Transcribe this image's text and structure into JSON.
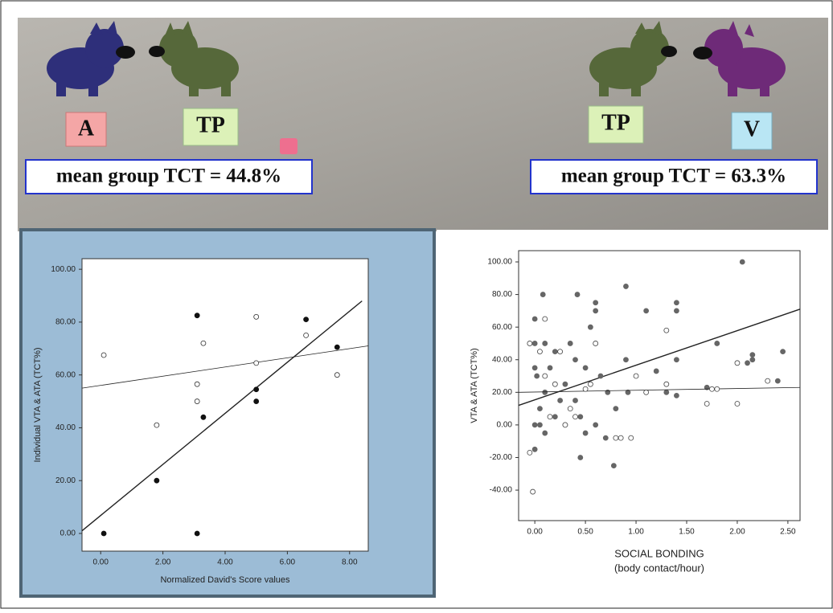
{
  "labels": {
    "left": [
      "A",
      "TP"
    ],
    "right": [
      "TP",
      "V"
    ]
  },
  "captions": [
    "mean group TCT = 44.8%",
    "mean group TCT = 63.3%"
  ],
  "chart_data": [
    {
      "type": "scatter",
      "xlabel": "Normalized David's Score values",
      "ylabel": "Individual VTA & ATA (TCT%)",
      "xlim": [
        -0.6,
        8.6
      ],
      "ylim": [
        -6.7,
        104
      ],
      "xticks": [
        {
          "value": 0,
          "label": "0.00"
        },
        {
          "value": 2,
          "label": "2.00"
        },
        {
          "value": 4,
          "label": "4.00"
        },
        {
          "value": 6,
          "label": "6.00"
        },
        {
          "value": 8,
          "label": "8.00"
        }
      ],
      "yticks": [
        {
          "value": 0,
          "label": "0.00"
        },
        {
          "value": 20,
          "label": "20.00"
        },
        {
          "value": 40,
          "label": "40.00"
        },
        {
          "value": 60,
          "label": "60.00"
        },
        {
          "value": 80,
          "label": "80.00"
        },
        {
          "value": 100,
          "label": "100.00"
        }
      ],
      "series": [
        {
          "marker": "filled",
          "color": "#111111",
          "x": [
            0.1,
            1.8,
            3.1,
            3.1,
            3.3,
            5.0,
            5.0,
            6.6,
            7.6
          ],
          "values": [
            0,
            20,
            0,
            82.5,
            44,
            54.5,
            50,
            81,
            70.5
          ],
          "fit": {
            "x": [
              -0.6,
              8.4
            ],
            "y": [
              1,
              88
            ]
          }
        },
        {
          "marker": "open",
          "color": "#333333",
          "x": [
            0.1,
            1.8,
            3.1,
            3.1,
            3.3,
            5.0,
            5.0,
            6.6,
            7.6
          ],
          "values": [
            67.5,
            41,
            56.5,
            50,
            72,
            82,
            64.5,
            75,
            60
          ],
          "fit": {
            "x": [
              -0.6,
              8.6
            ],
            "y": [
              55,
              71
            ]
          }
        }
      ]
    },
    {
      "type": "scatter",
      "xlabel": [
        "SOCIAL BONDING",
        "(body contact/hour)"
      ],
      "ylabel": "VTA & ATA (TCT%)",
      "xlim": [
        -0.16,
        2.62
      ],
      "ylim": [
        -58.7,
        106.9
      ],
      "xticks": [
        {
          "value": 0,
          "label": "0.00"
        },
        {
          "value": 0.5,
          "label": "0.50"
        },
        {
          "value": 1,
          "label": "1.00"
        },
        {
          "value": 1.5,
          "label": "1.50"
        },
        {
          "value": 2,
          "label": "2.00"
        },
        {
          "value": 2.5,
          "label": "2.50"
        }
      ],
      "yticks": [
        {
          "value": -40,
          "label": "-40.00"
        },
        {
          "value": -20,
          "label": "-20.00"
        },
        {
          "value": 0,
          "label": "0.00"
        },
        {
          "value": 20,
          "label": "20.00"
        },
        {
          "value": 40,
          "label": "40.00"
        },
        {
          "value": 60,
          "label": "60.00"
        },
        {
          "value": 80,
          "label": "80.00"
        },
        {
          "value": 100,
          "label": "100.00"
        }
      ],
      "series": [
        {
          "marker": "filled",
          "color": "#666666",
          "x": [
            0.0,
            0.0,
            0.0,
            0.0,
            0.0,
            0.02,
            0.05,
            0.05,
            0.08,
            0.1,
            0.1,
            0.1,
            0.15,
            0.2,
            0.2,
            0.25,
            0.3,
            0.3,
            0.35,
            0.4,
            0.4,
            0.42,
            0.45,
            0.45,
            0.5,
            0.5,
            0.55,
            0.6,
            0.6,
            0.6,
            0.65,
            0.7,
            0.72,
            0.78,
            0.8,
            0.9,
            0.9,
            0.92,
            1.1,
            1.2,
            1.3,
            1.4,
            1.4,
            1.4,
            1.4,
            1.7,
            1.8,
            2.05,
            2.1,
            2.15,
            2.15,
            2.4,
            2.45
          ],
          "values": [
            65,
            50,
            35,
            0,
            -15,
            30,
            0,
            10,
            80,
            50,
            20,
            -5,
            35,
            45,
            5,
            15,
            25,
            0,
            50,
            40,
            15,
            80,
            -20,
            5,
            35,
            -5,
            60,
            75,
            70,
            0,
            30,
            -8,
            20,
            -25,
            10,
            85,
            40,
            20,
            70,
            33,
            20,
            75,
            70,
            40,
            18,
            23,
            50,
            100,
            38,
            43,
            40,
            27,
            45
          ],
          "fit": {
            "x": [
              -0.16,
              2.62
            ],
            "y": [
              12,
              71
            ]
          }
        },
        {
          "marker": "open",
          "color": "#444444",
          "x": [
            -0.05,
            -0.05,
            -0.02,
            0.05,
            0.1,
            0.1,
            0.15,
            0.2,
            0.25,
            0.3,
            0.35,
            0.4,
            0.5,
            0.55,
            0.6,
            0.8,
            0.85,
            0.95,
            1.0,
            1.1,
            1.3,
            1.3,
            1.75,
            1.8,
            2.0,
            2.0,
            2.3,
            1.7
          ],
          "values": [
            50,
            -17,
            -41,
            45,
            65,
            30,
            5,
            25,
            45,
            0,
            10,
            5,
            22,
            25,
            50,
            -8,
            -8,
            -8,
            30,
            20,
            58,
            25,
            22,
            22,
            13,
            38,
            27,
            13
          ],
          "fit": {
            "x": [
              -0.16,
              2.62
            ],
            "y": [
              20,
              23
            ]
          }
        }
      ]
    }
  ]
}
